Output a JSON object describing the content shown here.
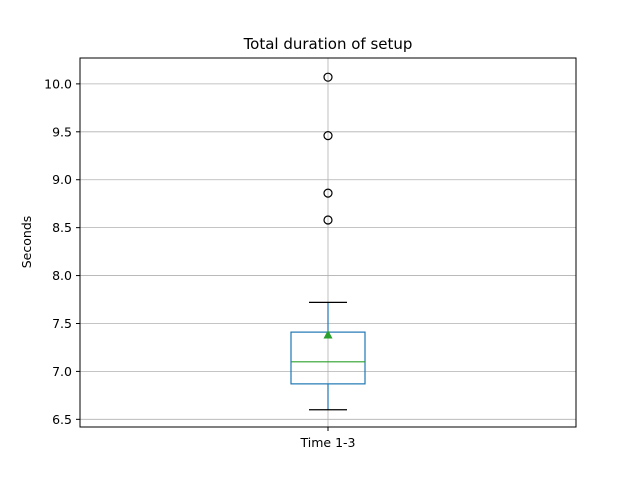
{
  "chart_data": {
    "type": "box",
    "title": "Total duration of setup",
    "xlabel": "",
    "ylabel": "Seconds",
    "categories": [
      "Time 1-3"
    ],
    "ylim": [
      6.42,
      10.27
    ],
    "yticks": [
      "6.5",
      "7.0",
      "7.5",
      "8.0",
      "8.5",
      "9.0",
      "9.5",
      "10.0"
    ],
    "grid": true,
    "boxes": [
      {
        "label": "Time 1-3",
        "whisker_low": 6.6,
        "q1": 6.87,
        "median": 7.1,
        "q3": 7.41,
        "whisker_high": 7.72,
        "mean": 7.38,
        "outliers": [
          8.58,
          8.86,
          9.46,
          10.07
        ]
      }
    ],
    "colors": {
      "box": "#1f77b4",
      "median": "#2ca02c",
      "mean": "#2ca02c",
      "grid": "#b0b0b0",
      "outlier": "#000000"
    }
  }
}
